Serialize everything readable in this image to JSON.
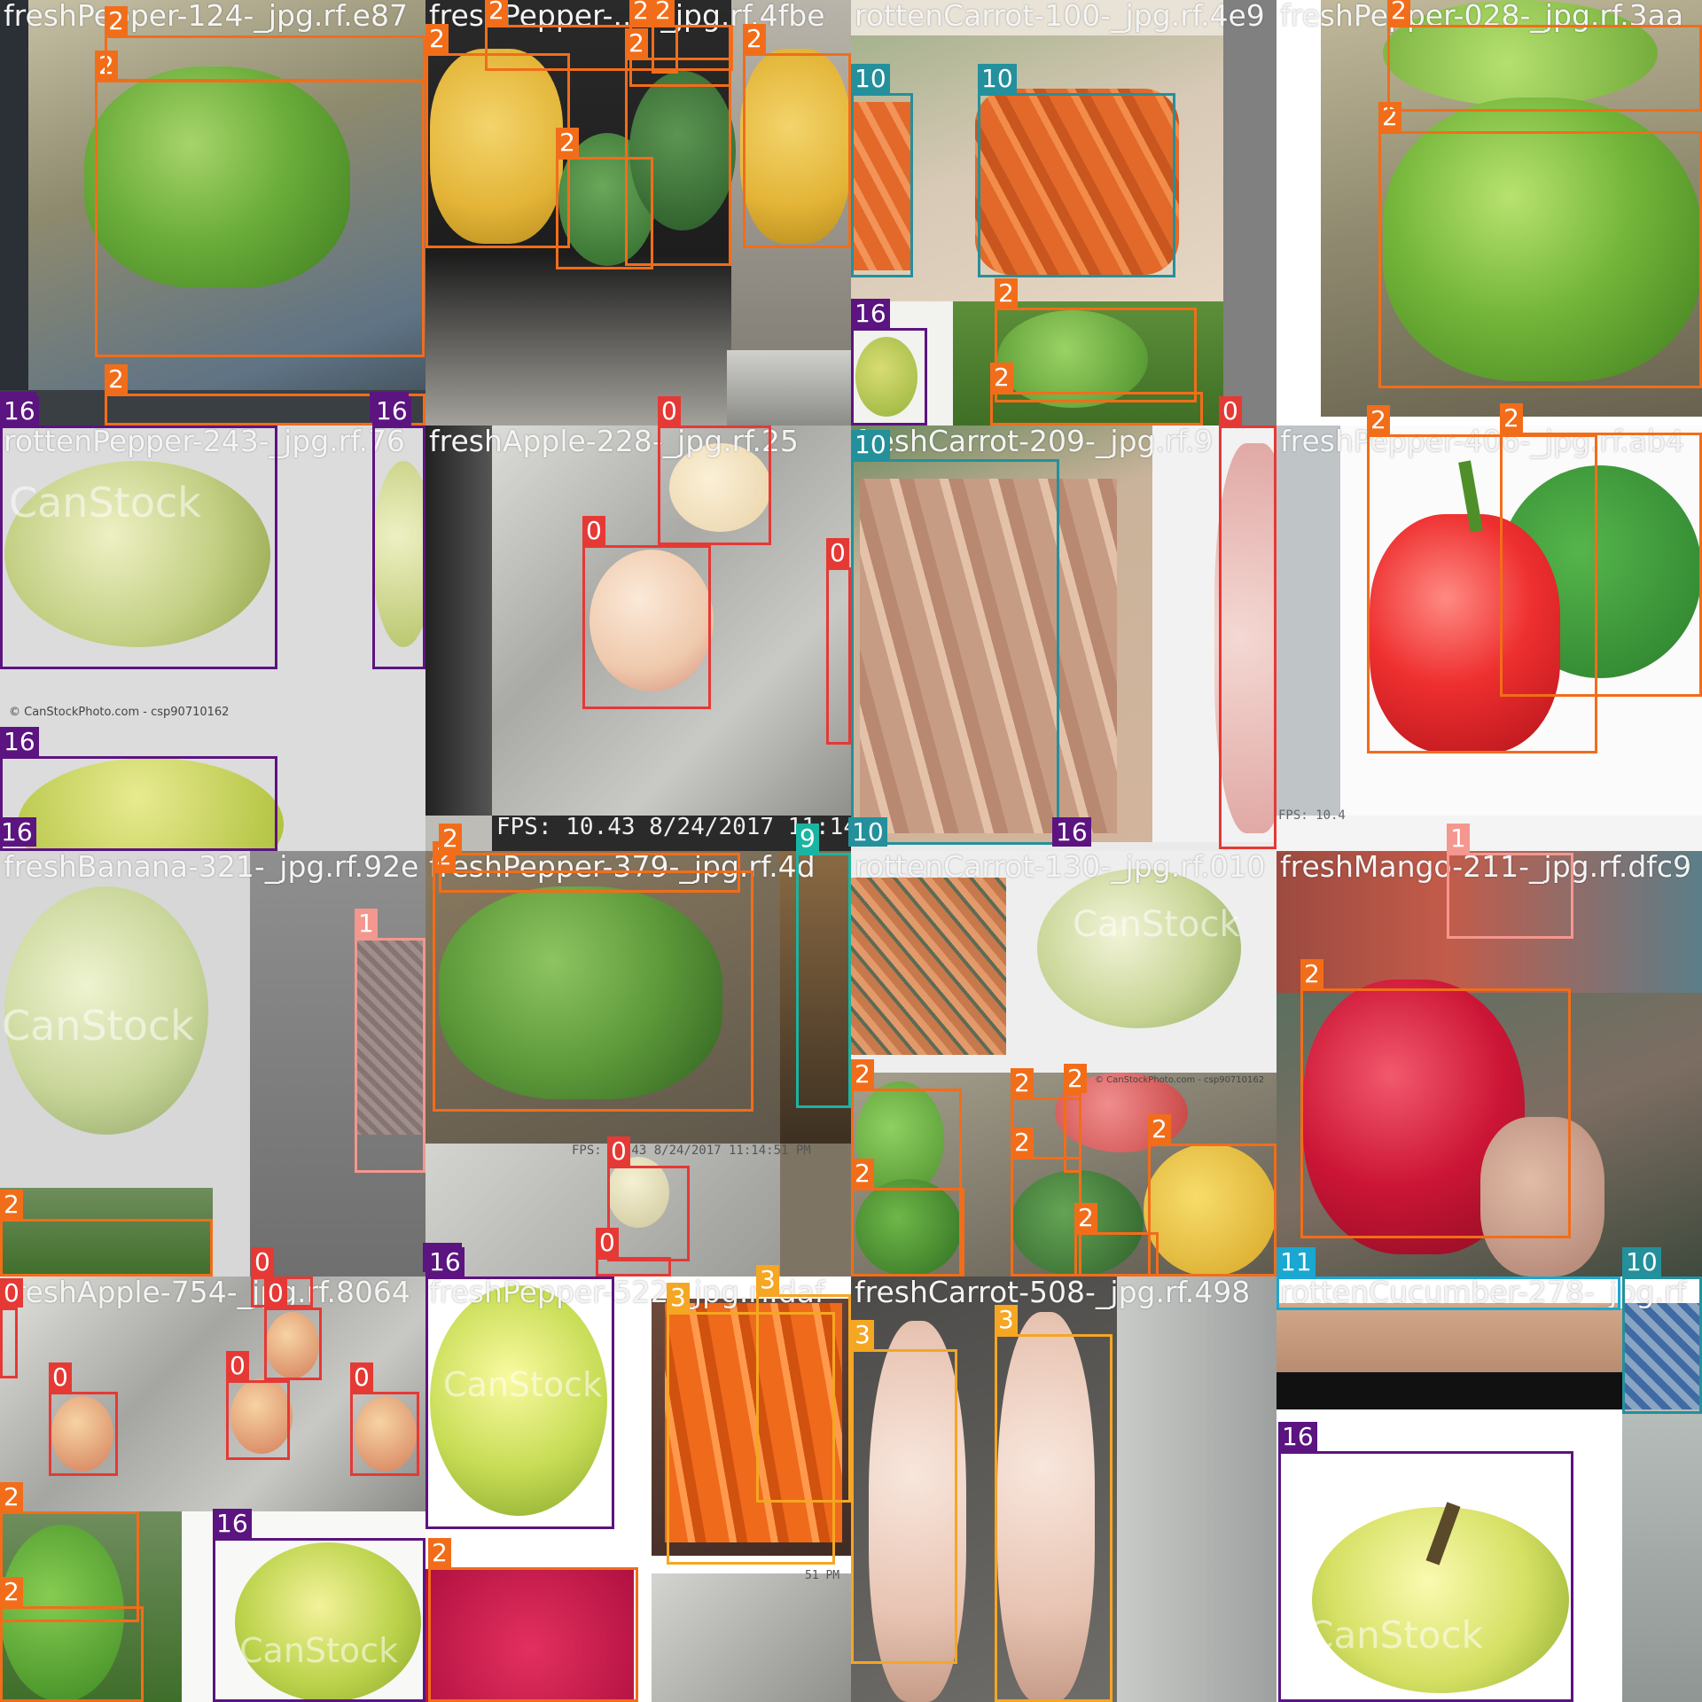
{
  "mosaic_title": "",
  "tile_titles": [
    "freshPepper-124-_jpg.rf.e87",
    "freshPepper-... -_jpg.rf.4fbe",
    "rottenCarrot-100-_jpg.rf.4e9",
    "freshPepper-028-_jpg.rf.3aa",
    "rottenPepper-243-_jpg.rf.76",
    "freshApple-228-_jpg.rf.25",
    "freshCarrot-209-_jpg.rf.9",
    "freshPepper-406-_jpg.rf.ab4",
    "freshBanana-321-_jpg.rf.92e",
    "freshPepper-379-_jpg.rf.4d",
    "rottenCarrot-130-_jpg.rf.010",
    "freshMango-211-_jpg.rf.dfc9",
    "freshApple-754-_jpg.rf.8064",
    "freshPepper-522-_jpg.rf.daf",
    "freshCarrot-508-_jpg.rf.498",
    "rottenCucumber-278-_jpg.rf"
  ],
  "overlay_text": {
    "fps_big": "FPS: 10.43 8/24/2017 11:14:51 PM",
    "fps_small": "FPS: 10.43 8/24/2017 11:14:51 PM",
    "fps_tiny": "FPS: 10.4",
    "fps_tile_edge": "51 PM",
    "watermark": "CanStock",
    "credit": "© CanStockPhoto.com - csp90710162"
  },
  "class_colors": {
    "0": "#e53935",
    "1": "#f4978e",
    "2": "#f26d1a",
    "3": "#f5a623",
    "9": "#1ab5a2",
    "10": "#23909c",
    "11": "#1aa7d1",
    "16": "#5b1480"
  },
  "detections": [
    {
      "label": "2"
    },
    {
      "label": "2"
    },
    {
      "label": "2"
    },
    {
      "label": "16"
    },
    {
      "label": "16"
    },
    {
      "label": "2"
    },
    {
      "label": "2"
    },
    {
      "label": "2"
    },
    {
      "label": "2"
    },
    {
      "label": "2"
    },
    {
      "label": "2"
    },
    {
      "label": "2"
    },
    {
      "label": "10"
    },
    {
      "label": "10"
    },
    {
      "label": "16"
    },
    {
      "label": "2"
    },
    {
      "label": "2"
    },
    {
      "label": "2"
    },
    {
      "label": "2"
    },
    {
      "label": "16"
    },
    {
      "label": "16"
    },
    {
      "label": "16"
    },
    {
      "label": "16"
    },
    {
      "label": "0"
    },
    {
      "label": "0"
    },
    {
      "label": "0"
    },
    {
      "label": "10"
    },
    {
      "label": "16"
    },
    {
      "label": "0"
    },
    {
      "label": "10"
    },
    {
      "label": "2"
    },
    {
      "label": "2"
    },
    {
      "label": "2"
    },
    {
      "label": "1"
    },
    {
      "label": "2"
    },
    {
      "label": "2"
    },
    {
      "label": "0"
    },
    {
      "label": "0"
    },
    {
      "label": "9"
    },
    {
      "label": "16"
    },
    {
      "label": "2"
    },
    {
      "label": "2"
    },
    {
      "label": "2"
    },
    {
      "label": "2"
    },
    {
      "label": "2"
    },
    {
      "label": "2"
    },
    {
      "label": "2"
    },
    {
      "label": "1"
    },
    {
      "label": "2"
    },
    {
      "label": "0"
    },
    {
      "label": "0"
    },
    {
      "label": "0"
    },
    {
      "label": "0"
    },
    {
      "label": "0"
    },
    {
      "label": "0"
    },
    {
      "label": "2"
    },
    {
      "label": "2"
    },
    {
      "label": "16"
    },
    {
      "label": "3"
    },
    {
      "label": "3"
    },
    {
      "label": "16"
    },
    {
      "label": "2"
    },
    {
      "label": "3"
    },
    {
      "label": "3"
    },
    {
      "label": "11"
    },
    {
      "label": "10"
    },
    {
      "label": "16"
    }
  ]
}
